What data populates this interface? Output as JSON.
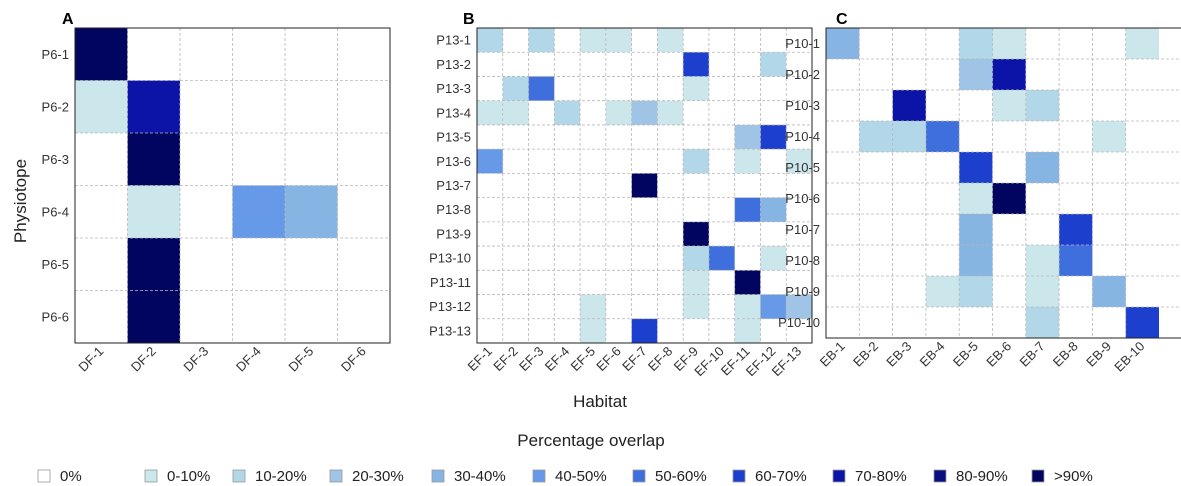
{
  "chart_data": [
    {
      "type": "heatmap",
      "panel": "A",
      "rows": [
        "P6-1",
        "P6-2",
        "P6-3",
        "P6-4",
        "P6-5",
        "P6-6"
      ],
      "cols": [
        "DF-1",
        "DF-2",
        "DF-3",
        "DF-4",
        "DF-5",
        "DF-6"
      ],
      "cells": [
        {
          "r": "P6-1",
          "c": "DF-1",
          "bin": ">90%"
        },
        {
          "r": "P6-2",
          "c": "DF-1",
          "bin": "0-10%"
        },
        {
          "r": "P6-2",
          "c": "DF-2",
          "bin": "70-80%"
        },
        {
          "r": "P6-3",
          "c": "DF-2",
          "bin": ">90%"
        },
        {
          "r": "P6-4",
          "c": "DF-2",
          "bin": "0-10%"
        },
        {
          "r": "P6-4",
          "c": "DF-4",
          "bin": "40-50%"
        },
        {
          "r": "P6-4",
          "c": "DF-5",
          "bin": "30-40%"
        },
        {
          "r": "P6-5",
          "c": "DF-2",
          "bin": ">90%"
        },
        {
          "r": "P6-6",
          "c": "DF-2",
          "bin": ">90%"
        }
      ]
    },
    {
      "type": "heatmap",
      "panel": "B",
      "rows": [
        "P13-1",
        "P13-2",
        "P13-3",
        "P13-4",
        "P13-5",
        "P13-6",
        "P13-7",
        "P13-8",
        "P13-9",
        "P13-10",
        "P13-11",
        "P13-12",
        "P13-13"
      ],
      "cols": [
        "EF-1",
        "EF-2",
        "EF-3",
        "EF-4",
        "EF-5",
        "EF-6",
        "EF-7",
        "EF-8",
        "EF-9",
        "EF-10",
        "EF-11",
        "EF-12",
        "EF-13"
      ],
      "cells": [
        {
          "r": "P13-1",
          "c": "EF-1",
          "bin": "10-20%"
        },
        {
          "r": "P13-1",
          "c": "EF-3",
          "bin": "10-20%"
        },
        {
          "r": "P13-1",
          "c": "EF-5",
          "bin": "0-10%"
        },
        {
          "r": "P13-1",
          "c": "EF-6",
          "bin": "0-10%"
        },
        {
          "r": "P13-1",
          "c": "EF-8",
          "bin": "0-10%"
        },
        {
          "r": "P13-2",
          "c": "EF-9",
          "bin": "60-70%"
        },
        {
          "r": "P13-2",
          "c": "EF-12",
          "bin": "10-20%"
        },
        {
          "r": "P13-3",
          "c": "EF-2",
          "bin": "10-20%"
        },
        {
          "r": "P13-3",
          "c": "EF-3",
          "bin": "50-60%"
        },
        {
          "r": "P13-3",
          "c": "EF-9",
          "bin": "0-10%"
        },
        {
          "r": "P13-4",
          "c": "EF-1",
          "bin": "0-10%"
        },
        {
          "r": "P13-4",
          "c": "EF-2",
          "bin": "0-10%"
        },
        {
          "r": "P13-4",
          "c": "EF-4",
          "bin": "10-20%"
        },
        {
          "r": "P13-4",
          "c": "EF-6",
          "bin": "0-10%"
        },
        {
          "r": "P13-4",
          "c": "EF-7",
          "bin": "20-30%"
        },
        {
          "r": "P13-4",
          "c": "EF-8",
          "bin": "0-10%"
        },
        {
          "r": "P13-5",
          "c": "EF-11",
          "bin": "20-30%"
        },
        {
          "r": "P13-5",
          "c": "EF-12",
          "bin": "60-70%"
        },
        {
          "r": "P13-6",
          "c": "EF-1",
          "bin": "40-50%"
        },
        {
          "r": "P13-6",
          "c": "EF-9",
          "bin": "10-20%"
        },
        {
          "r": "P13-6",
          "c": "EF-11",
          "bin": "0-10%"
        },
        {
          "r": "P13-6",
          "c": "EF-13",
          "bin": "0-10%"
        },
        {
          "r": "P13-7",
          "c": "EF-7",
          "bin": ">90%"
        },
        {
          "r": "P13-8",
          "c": "EF-11",
          "bin": "50-60%"
        },
        {
          "r": "P13-8",
          "c": "EF-12",
          "bin": "30-40%"
        },
        {
          "r": "P13-9",
          "c": "EF-9",
          "bin": ">90%"
        },
        {
          "r": "P13-10",
          "c": "EF-9",
          "bin": "10-20%"
        },
        {
          "r": "P13-10",
          "c": "EF-10",
          "bin": "50-60%"
        },
        {
          "r": "P13-10",
          "c": "EF-12",
          "bin": "0-10%"
        },
        {
          "r": "P13-11",
          "c": "EF-9",
          "bin": "0-10%"
        },
        {
          "r": "P13-11",
          "c": "EF-11",
          "bin": ">90%"
        },
        {
          "r": "P13-12",
          "c": "EF-5",
          "bin": "0-10%"
        },
        {
          "r": "P13-12",
          "c": "EF-9",
          "bin": "0-10%"
        },
        {
          "r": "P13-12",
          "c": "EF-11",
          "bin": "0-10%"
        },
        {
          "r": "P13-12",
          "c": "EF-12",
          "bin": "40-50%"
        },
        {
          "r": "P13-12",
          "c": "EF-13",
          "bin": "20-30%"
        },
        {
          "r": "P13-13",
          "c": "EF-5",
          "bin": "0-10%"
        },
        {
          "r": "P13-13",
          "c": "EF-7",
          "bin": "60-70%"
        },
        {
          "r": "P13-13",
          "c": "EF-11",
          "bin": "0-10%"
        }
      ]
    },
    {
      "type": "heatmap",
      "panel": "C",
      "rows": [
        "P10-1",
        "P10-2",
        "P10-3",
        "P10-4",
        "P10-5",
        "P10-6",
        "P10-7",
        "P10-8",
        "P10-9",
        "P10-10"
      ],
      "cols": [
        "EB-1",
        "EB-2",
        "EB-3",
        "EB-4",
        "EB-5",
        "EB-6",
        "EB-7",
        "EB-8",
        "EB-9",
        "EB-10"
      ],
      "cells": [
        {
          "r": "P10-1",
          "c": "EB-1",
          "bin": "30-40%"
        },
        {
          "r": "P10-1",
          "c": "EB-5",
          "bin": "10-20%"
        },
        {
          "r": "P10-1",
          "c": "EB-6",
          "bin": "0-10%"
        },
        {
          "r": "P10-1",
          "c": "EB-10",
          "bin": "0-10%"
        },
        {
          "r": "P10-2",
          "c": "EB-5",
          "bin": "20-30%"
        },
        {
          "r": "P10-2",
          "c": "EB-6",
          "bin": "70-80%"
        },
        {
          "r": "P10-3",
          "c": "EB-3",
          "bin": "70-80%"
        },
        {
          "r": "P10-3",
          "c": "EB-6",
          "bin": "0-10%"
        },
        {
          "r": "P10-3",
          "c": "EB-7",
          "bin": "10-20%"
        },
        {
          "r": "P10-4",
          "c": "EB-2",
          "bin": "10-20%"
        },
        {
          "r": "P10-4",
          "c": "EB-3",
          "bin": "10-20%"
        },
        {
          "r": "P10-4",
          "c": "EB-4",
          "bin": "50-60%"
        },
        {
          "r": "P10-4",
          "c": "EB-9",
          "bin": "0-10%"
        },
        {
          "r": "P10-5",
          "c": "EB-5",
          "bin": "60-70%"
        },
        {
          "r": "P10-5",
          "c": "EB-7",
          "bin": "30-40%"
        },
        {
          "r": "P10-6",
          "c": "EB-5",
          "bin": "0-10%"
        },
        {
          "r": "P10-6",
          "c": "EB-6",
          "bin": ">90%"
        },
        {
          "r": "P10-7",
          "c": "EB-5",
          "bin": "30-40%"
        },
        {
          "r": "P10-7",
          "c": "EB-8",
          "bin": "60-70%"
        },
        {
          "r": "P10-8",
          "c": "EB-5",
          "bin": "30-40%"
        },
        {
          "r": "P10-8",
          "c": "EB-7",
          "bin": "0-10%"
        },
        {
          "r": "P10-8",
          "c": "EB-8",
          "bin": "50-60%"
        },
        {
          "r": "P10-9",
          "c": "EB-4",
          "bin": "0-10%"
        },
        {
          "r": "P10-9",
          "c": "EB-5",
          "bin": "10-20%"
        },
        {
          "r": "P10-9",
          "c": "EB-7",
          "bin": "0-10%"
        },
        {
          "r": "P10-9",
          "c": "EB-9",
          "bin": "30-40%"
        },
        {
          "r": "P10-10",
          "c": "EB-7",
          "bin": "10-20%"
        },
        {
          "r": "P10-10",
          "c": "EB-10",
          "bin": "60-70%"
        }
      ]
    }
  ],
  "axes": {
    "ylabel": "Physiotope",
    "xlabel": "Habitat"
  },
  "legend": {
    "title": "Percentage overlap",
    "placement": "bottom",
    "items": [
      {
        "label": "0%",
        "color": "#ffffff"
      },
      {
        "label": "0-10%",
        "color": "#cbe7ec"
      },
      {
        "label": "10-20%",
        "color": "#b2d7e8"
      },
      {
        "label": "20-30%",
        "color": "#9fc4e5"
      },
      {
        "label": "30-40%",
        "color": "#86b4e3"
      },
      {
        "label": "40-50%",
        "color": "#6699e8"
      },
      {
        "label": "50-60%",
        "color": "#3f6fdc"
      },
      {
        "label": "60-70%",
        "color": "#1c3fce"
      },
      {
        "label": "70-80%",
        "color": "#0c14a8"
      },
      {
        "label": "80-90%",
        "color": "#07107e"
      },
      {
        "label": ">90%",
        "color": "#020560"
      }
    ]
  }
}
